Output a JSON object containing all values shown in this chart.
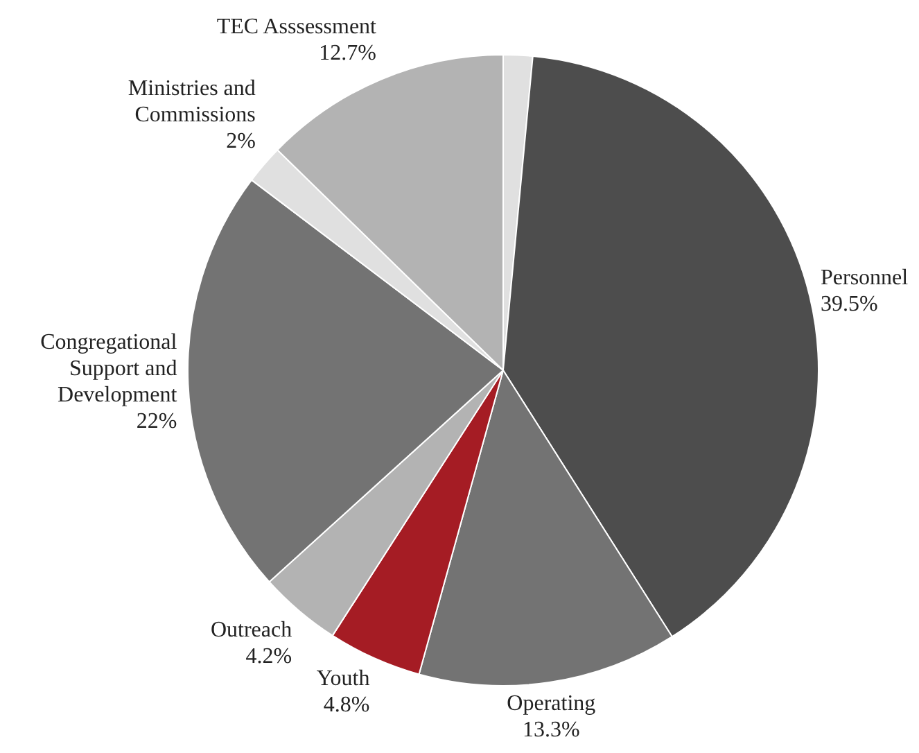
{
  "chart_data": {
    "type": "pie",
    "categories": [
      null,
      "Personnel",
      "Operating",
      "Youth",
      "Outreach",
      "Congregational Support and Development",
      "Ministries and Commissions",
      "TEC Asssessment"
    ],
    "values": [
      1.5,
      39.5,
      13.3,
      4.8,
      4.2,
      22,
      2,
      12.7
    ],
    "value_labels": [
      null,
      "39.5%",
      "13.3%",
      "4.8%",
      "4.2%",
      "22%",
      "2%",
      "12.7%"
    ],
    "colors": [
      "#e0e0e0",
      "#4d4d4d",
      "#737373",
      "#a51c24",
      "#b3b3b3",
      "#737373",
      "#e0e0e0",
      "#b3b3b3"
    ],
    "legend": false
  }
}
